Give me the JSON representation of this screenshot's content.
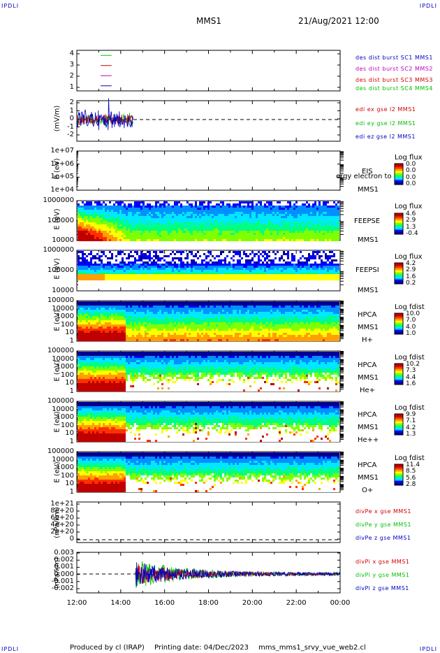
{
  "header": {
    "corner_tl": "IPDLI",
    "corner_tr": "IPDLI",
    "corner_bl": "IPDLI",
    "corner_br": "IPDLI",
    "spacecraft": "MMS1",
    "datetime": "21/Aug/2021 12:00"
  },
  "footer": {
    "produced": "Produced by cl (IRAP)",
    "printing": "Printing date: 04/Dec/2023",
    "script": "mms_mms1_srvy_vue_web2.cl"
  },
  "colors": {
    "blue": "#0000c0",
    "red": "#d00000",
    "green": "#00c000",
    "magenta": "#c000c0",
    "spectrogram": [
      "#000090",
      "#0000ff",
      "#0090ff",
      "#00e8ff",
      "#00ff80",
      "#80ff00",
      "#ffff00",
      "#ffa000",
      "#ff3000",
      "#c00000"
    ]
  },
  "chart_data": [
    {
      "type": "line",
      "panel": "burst",
      "yticks": [
        "4",
        "3",
        "2",
        "1"
      ],
      "ylim": [
        0.5,
        4.5
      ],
      "series": [
        {
          "name": "des dist burst SC1 MMS1",
          "color": "#0000c0",
          "values": [
            {
              "x": "13:05",
              "y": 1
            },
            {
              "x": "13:35",
              "y": 1
            }
          ]
        },
        {
          "name": "des dist burst SC2 MMS2",
          "color": "#c000c0",
          "values": [
            {
              "x": "13:05",
              "y": 2
            },
            {
              "x": "13:35",
              "y": 2
            }
          ]
        },
        {
          "name": "des dist burst SC3 MMS3",
          "color": "#d00000",
          "values": [
            {
              "x": "13:05",
              "y": 3
            },
            {
              "x": "13:35",
              "y": 3
            }
          ]
        },
        {
          "name": "des dist burst SC4 MMS4",
          "color": "#00c000",
          "values": [
            {
              "x": "13:05",
              "y": 4
            },
            {
              "x": "13:35",
              "y": 4
            }
          ]
        }
      ]
    },
    {
      "type": "line",
      "panel": "edi",
      "ylabel": "(mV/m)",
      "yticks": [
        "2",
        "1",
        "0",
        "-1",
        "-2"
      ],
      "ylim": [
        -2.5,
        2.5
      ],
      "series": [
        {
          "name": "edi ex gse l2 MMS1",
          "color": "#d00000"
        },
        {
          "name": "edi ey gse l2 MMS1",
          "color": "#00c000"
        },
        {
          "name": "edi ez gse l2 MMS1",
          "color": "#0000c0"
        }
      ],
      "data_range": [
        "12:00",
        "14:35"
      ]
    },
    {
      "type": "heatmap",
      "panel": "eis",
      "ylabel": "E (eV)",
      "yticks": [
        "1e+07",
        "1e+06",
        "1e+05",
        "1e+04"
      ],
      "labels": [
        "EIS",
        "MMS1"
      ],
      "overlay_text": "ergy electron to",
      "colorbar": {
        "title": "Log flux",
        "values": [
          "0.0",
          "0.0",
          "0.0",
          "0.0"
        ]
      }
    },
    {
      "type": "heatmap",
      "panel": "feepse",
      "ylabel": "E (eV)",
      "yticks": [
        "1000000",
        "100000",
        "10000"
      ],
      "labels": [
        "FEEPSE",
        "MMS1"
      ],
      "colorbar": {
        "title": "Log flux",
        "values": [
          "4.6",
          "2.9",
          "1.3",
          "-0.4"
        ]
      }
    },
    {
      "type": "heatmap",
      "panel": "feepsi",
      "ylabel": "E (eV)",
      "yticks": [
        "1000000",
        "100000",
        "10000"
      ],
      "labels": [
        "FEEPSI",
        "MMS1"
      ],
      "colorbar": {
        "title": "Log flux",
        "values": [
          "4.2",
          "2.9",
          "1.6",
          "0.2"
        ]
      }
    },
    {
      "type": "heatmap",
      "panel": "hpca-h",
      "ylabel": "E (eV)",
      "yticks": [
        "100000",
        "10000",
        "1000",
        "100",
        "10",
        "1"
      ],
      "labels": [
        "HPCA",
        "MMS1",
        "H+"
      ],
      "colorbar": {
        "title": "Log fdist",
        "values": [
          "10.0",
          "7.0",
          "4.0",
          "1.0"
        ]
      }
    },
    {
      "type": "heatmap",
      "panel": "hpca-he",
      "ylabel": "E (eV)",
      "yticks": [
        "100000",
        "10000",
        "1000",
        "100",
        "10",
        "1"
      ],
      "labels": [
        "HPCA",
        "MMS1",
        "He+"
      ],
      "colorbar": {
        "title": "Log fdist",
        "values": [
          "10.2",
          "7.3",
          "4.4",
          "1.6"
        ]
      }
    },
    {
      "type": "heatmap",
      "panel": "hpca-hepp",
      "ylabel": "E (eV)",
      "yticks": [
        "100000",
        "10000",
        "1000",
        "100",
        "10",
        "1"
      ],
      "labels": [
        "HPCA",
        "MMS1",
        "He++"
      ],
      "colorbar": {
        "title": "Log fdist",
        "values": [
          "9.9",
          "7.1",
          "4.2",
          "1.3"
        ]
      }
    },
    {
      "type": "heatmap",
      "panel": "hpca-o",
      "ylabel": "E (eV)",
      "yticks": [
        "100000",
        "10000",
        "1000",
        "100",
        "10",
        "1"
      ],
      "labels": [
        "HPCA",
        "MMS1",
        "O+"
      ],
      "colorbar": {
        "title": "Log fdist",
        "values": [
          "11.4",
          "8.5",
          "5.6",
          "2.8"
        ]
      }
    },
    {
      "type": "line",
      "panel": "divpe",
      "ylabel": "(nPa/km)",
      "yticks": [
        "1e+21",
        "8e+20",
        "6e+20",
        "4e+20",
        "2e+20",
        "0"
      ],
      "series": [
        {
          "name": "divPe x gse MMS1",
          "color": "#d00000"
        },
        {
          "name": "divPe y gse MMS1",
          "color": "#00c000"
        },
        {
          "name": "divPe z gse MMS1",
          "color": "#0000c0"
        }
      ]
    },
    {
      "type": "line",
      "panel": "divpi",
      "ylabel": "(nPa/km)",
      "yticks": [
        "0.003",
        "0.002",
        "0.001",
        "0.000",
        "-0.001",
        "-0.002"
      ],
      "series": [
        {
          "name": "divPi x gse MMS1",
          "color": "#d00000"
        },
        {
          "name": "divPi y gse MMS1",
          "color": "#00c000"
        },
        {
          "name": "divPi z gse MMS1",
          "color": "#0000c0"
        }
      ],
      "data_range": [
        "14:40",
        "00:00"
      ]
    }
  ],
  "xaxis": {
    "ticks": [
      "12:00",
      "14:00",
      "16:00",
      "18:00",
      "20:00",
      "22:00",
      "00:00"
    ]
  }
}
